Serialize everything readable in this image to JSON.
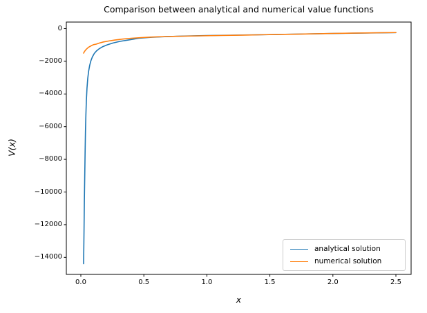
{
  "chart_data": {
    "type": "line",
    "title": "Comparison between analytical and numerical value functions",
    "xlabel": "x",
    "ylabel": "V(x)",
    "xlim": [
      -0.115,
      2.62
    ],
    "ylim": [
      -15040,
      400
    ],
    "grid": false,
    "background_color": "#ffffff",
    "spine_color": "#000000",
    "text_color": "#000000",
    "legend": {
      "position": "lower right",
      "border_color": "#cccccc",
      "entries": [
        "analytical solution",
        "numerical solution"
      ]
    },
    "xticks": {
      "values": [
        0.0,
        0.5,
        1.0,
        1.5,
        2.0,
        2.5
      ],
      "labels": [
        "0.0",
        "0.5",
        "1.0",
        "1.5",
        "2.0",
        "2.5"
      ]
    },
    "yticks": {
      "values": [
        0,
        -2000,
        -4000,
        -6000,
        -8000,
        -10000,
        -12000,
        -14000
      ],
      "labels": [
        "0",
        "−2000",
        "−4000",
        "−6000",
        "−8000",
        "−10000",
        "−12000",
        "−14000"
      ]
    },
    "series": [
      {
        "name": "analytical solution",
        "color": "#1f77b4",
        "x": [
          0.022,
          0.025,
          0.028,
          0.031,
          0.034,
          0.037,
          0.04,
          0.044,
          0.049,
          0.055,
          0.062,
          0.07,
          0.08,
          0.092,
          0.107,
          0.125,
          0.148,
          0.175,
          0.21,
          0.255,
          0.31,
          0.38,
          0.46,
          0.56,
          0.68,
          0.82,
          1.0,
          1.2,
          1.45,
          1.7,
          2.0,
          2.25,
          2.5
        ],
        "y": [
          -14390,
          -12400,
          -10500,
          -8900,
          -7500,
          -6300,
          -5300,
          -4400,
          -3650,
          -3050,
          -2600,
          -2250,
          -1960,
          -1720,
          -1520,
          -1360,
          -1220,
          -1100,
          -990,
          -880,
          -780,
          -690,
          -590,
          -530,
          -490,
          -455,
          -428,
          -402,
          -372,
          -338,
          -298,
          -268,
          -243
        ]
      },
      {
        "name": "numerical solution",
        "color": "#ff7f0e",
        "x": [
          0.022,
          0.03,
          0.04,
          0.052,
          0.066,
          0.082,
          0.1,
          0.122,
          0.148,
          0.18,
          0.22,
          0.27,
          0.33,
          0.4,
          0.48,
          0.57,
          0.68,
          0.8,
          0.95,
          1.1,
          1.3,
          1.5,
          1.75,
          2.0,
          2.25,
          2.5
        ],
        "y": [
          -1500,
          -1390,
          -1290,
          -1200,
          -1120,
          -1050,
          -985,
          -950,
          -880,
          -815,
          -760,
          -700,
          -640,
          -590,
          -550,
          -515,
          -487,
          -463,
          -441,
          -421,
          -397,
          -369,
          -334,
          -297,
          -267,
          -242
        ]
      }
    ]
  }
}
